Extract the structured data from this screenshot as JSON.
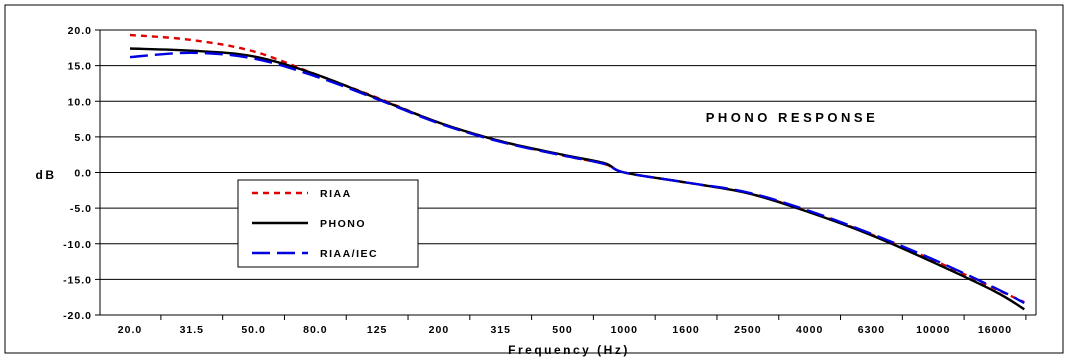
{
  "chart_data": {
    "type": "line",
    "title": "PHONO RESPONSE",
    "xlabel": "Frequency (Hz)",
    "ylabel": "dB",
    "x_scale": "log",
    "xlim": [
      20,
      20000
    ],
    "ylim": [
      -20,
      20
    ],
    "grid": "horizontal",
    "legend_placement": "lower-left",
    "x_ticks": [
      "20.0",
      "31.5",
      "50.0",
      "80.0",
      "125",
      "200",
      "315",
      "500",
      "1000",
      "1600",
      "2500",
      "4000",
      "6300",
      "10000",
      "16000"
    ],
    "y_ticks": [
      "20.0",
      "15.0",
      "10.0",
      "5.0",
      "0.0",
      "-5.0",
      "-10.0",
      "-15.0",
      "-20.0"
    ],
    "x": [
      20,
      31.5,
      50,
      80,
      125,
      200,
      315,
      500,
      800,
      1000,
      1600,
      2500,
      4000,
      6300,
      10000,
      16000,
      20000
    ],
    "series": [
      {
        "name": "RIAA",
        "color": "#e00000",
        "dash": "short-dash",
        "values": [
          19.3,
          18.6,
          17.0,
          13.8,
          10.5,
          7.0,
          4.4,
          2.4,
          1.2,
          0.0,
          -1.4,
          -2.9,
          -5.5,
          -8.7,
          -12.3,
          -16.3,
          -18.2
        ]
      },
      {
        "name": "PHONO",
        "color": "#000000",
        "dash": "solid",
        "values": [
          17.4,
          17.1,
          16.3,
          13.8,
          10.4,
          7.0,
          4.4,
          2.5,
          1.3,
          0.0,
          -1.4,
          -2.9,
          -5.6,
          -8.8,
          -12.6,
          -16.7,
          -19.2
        ]
      },
      {
        "name": "RIAA/IEC",
        "color": "#0000e0",
        "dash": "long-dash",
        "values": [
          16.2,
          16.8,
          16.0,
          13.5,
          10.3,
          6.9,
          4.3,
          2.4,
          1.2,
          0.0,
          -1.4,
          -2.8,
          -5.4,
          -8.6,
          -12.2,
          -16.2,
          -18.3
        ]
      }
    ]
  }
}
